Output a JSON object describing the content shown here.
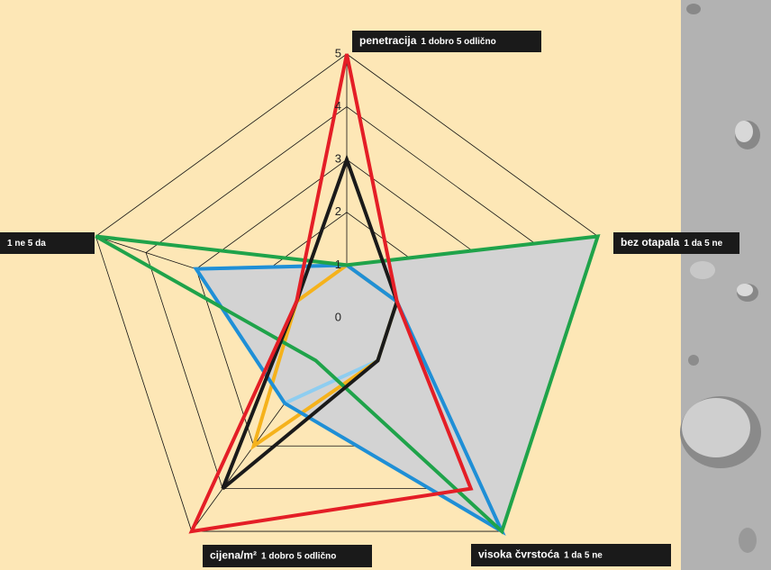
{
  "chart_data": {
    "type": "radar",
    "axes": [
      {
        "name": "penetracija",
        "scale": "1 dobro 5 odlično"
      },
      {
        "name": "bez otapala",
        "scale": "1 da 5 ne"
      },
      {
        "name": "visoka čvrstoća",
        "scale": "1 da 5 ne"
      },
      {
        "name": "cijena/m²",
        "scale": "1 dobro 5 odlično"
      },
      {
        "name": "",
        "scale": "1 ne 5 da"
      }
    ],
    "rlim": [
      0,
      5
    ],
    "rticks": [
      0,
      1,
      2,
      3,
      4,
      5
    ],
    "series": [
      {
        "color": "#d3d3d3",
        "fill": true,
        "values": [
          1,
          5,
          5,
          2,
          3
        ]
      },
      {
        "color": "#8ecdf0",
        "values": [
          1,
          1,
          1,
          2,
          3
        ]
      },
      {
        "color": "#f5b21c",
        "values": [
          1,
          1,
          1,
          3,
          1
        ]
      },
      {
        "color": "#1f8fd6",
        "values": [
          1,
          1,
          5,
          2,
          3
        ]
      },
      {
        "color": "#1fa34a",
        "values": [
          1,
          5,
          5,
          1,
          5
        ]
      },
      {
        "color": "#1a1a1a",
        "values": [
          3,
          1,
          1,
          4,
          1
        ]
      },
      {
        "color": "#e41e26",
        "values": [
          5,
          1,
          4,
          5,
          1
        ]
      }
    ]
  }
}
